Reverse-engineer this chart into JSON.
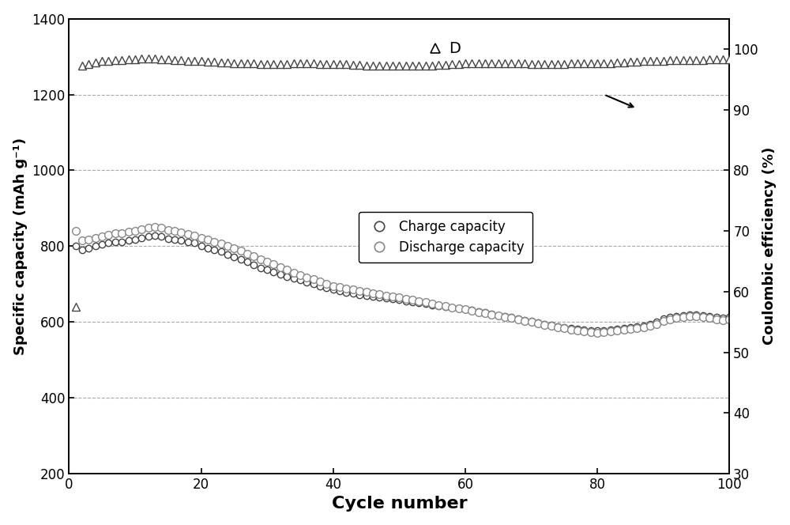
{
  "title": "",
  "xlabel": "Cycle number",
  "ylabel_left": "Specific capacity (mAh g⁻¹)",
  "ylabel_right": "Coulombic efficiency (%)",
  "xlim": [
    0,
    100
  ],
  "ylim_left": [
    200,
    1400
  ],
  "ylim_right": [
    30,
    105
  ],
  "yticks_left": [
    200,
    400,
    600,
    800,
    1000,
    1200,
    1400
  ],
  "yticks_right": [
    30,
    40,
    50,
    60,
    70,
    80,
    90,
    100
  ],
  "xticks": [
    0,
    20,
    40,
    60,
    80,
    100
  ],
  "legend_label_charge": "Charge capacity",
  "legend_label_discharge": "Discharge capacity",
  "annotation_label": "D",
  "background_color": "#ffffff",
  "grid_color": "#aaaaaa",
  "charge_cycles": [
    1,
    2,
    3,
    4,
    5,
    6,
    7,
    8,
    9,
    10,
    11,
    12,
    13,
    14,
    15,
    16,
    17,
    18,
    19,
    20,
    21,
    22,
    23,
    24,
    25,
    26,
    27,
    28,
    29,
    30,
    31,
    32,
    33,
    34,
    35,
    36,
    37,
    38,
    39,
    40,
    41,
    42,
    43,
    44,
    45,
    46,
    47,
    48,
    49,
    50,
    51,
    52,
    53,
    54,
    55,
    56,
    57,
    58,
    59,
    60,
    61,
    62,
    63,
    64,
    65,
    66,
    67,
    68,
    69,
    70,
    71,
    72,
    73,
    74,
    75,
    76,
    77,
    78,
    79,
    80,
    81,
    82,
    83,
    84,
    85,
    86,
    87,
    88,
    89,
    90,
    91,
    92,
    93,
    94,
    95,
    96,
    97,
    98,
    99,
    100
  ],
  "charge_capacity": [
    800,
    790,
    795,
    800,
    805,
    808,
    810,
    812,
    815,
    818,
    822,
    825,
    828,
    825,
    820,
    818,
    815,
    810,
    808,
    800,
    795,
    790,
    785,
    778,
    772,
    765,
    758,
    750,
    743,
    738,
    732,
    726,
    720,
    715,
    710,
    705,
    700,
    695,
    690,
    685,
    682,
    678,
    675,
    672,
    670,
    668,
    665,
    662,
    660,
    658,
    655,
    652,
    650,
    648,
    645,
    643,
    640,
    638,
    636,
    634,
    632,
    628,
    625,
    622,
    618,
    615,
    612,
    608,
    605,
    602,
    598,
    595,
    592,
    588,
    585,
    583,
    582,
    580,
    578,
    577,
    578,
    580,
    582,
    583,
    585,
    587,
    590,
    595,
    600,
    608,
    612,
    615,
    618,
    620,
    620,
    618,
    615,
    612,
    610,
    612
  ],
  "discharge_capacity": [
    840,
    815,
    818,
    822,
    825,
    830,
    833,
    835,
    838,
    840,
    845,
    848,
    850,
    848,
    842,
    840,
    836,
    832,
    828,
    822,
    817,
    812,
    807,
    800,
    795,
    788,
    780,
    773,
    765,
    758,
    752,
    745,
    737,
    730,
    724,
    718,
    712,
    706,
    700,
    695,
    692,
    688,
    685,
    682,
    679,
    676,
    673,
    670,
    667,
    664,
    661,
    658,
    655,
    652,
    648,
    645,
    642,
    638,
    636,
    633,
    630,
    626,
    623,
    620,
    616,
    613,
    610,
    606,
    603,
    600,
    596,
    593,
    590,
    586,
    583,
    580,
    578,
    576,
    574,
    572,
    573,
    575,
    577,
    579,
    581,
    583,
    585,
    590,
    595,
    603,
    607,
    610,
    613,
    615,
    615,
    613,
    610,
    607,
    605,
    607
  ],
  "ce_cycles": [
    1,
    2,
    3,
    4,
    5,
    6,
    7,
    8,
    9,
    10,
    11,
    12,
    13,
    14,
    15,
    16,
    17,
    18,
    19,
    20,
    21,
    22,
    23,
    24,
    25,
    26,
    27,
    28,
    29,
    30,
    31,
    32,
    33,
    34,
    35,
    36,
    37,
    38,
    39,
    40,
    41,
    42,
    43,
    44,
    45,
    46,
    47,
    48,
    49,
    50,
    51,
    52,
    53,
    54,
    55,
    56,
    57,
    58,
    59,
    60,
    61,
    62,
    63,
    64,
    65,
    66,
    67,
    68,
    69,
    70,
    71,
    72,
    73,
    74,
    75,
    76,
    77,
    78,
    79,
    80,
    81,
    82,
    83,
    84,
    85,
    86,
    87,
    88,
    89,
    90,
    91,
    92,
    93,
    94,
    95,
    96,
    97,
    98,
    99,
    100
  ],
  "coulombic_efficiency": [
    57.5,
    97.2,
    97.5,
    97.8,
    98.0,
    98.1,
    98.2,
    98.2,
    98.3,
    98.3,
    98.4,
    98.4,
    98.4,
    98.3,
    98.3,
    98.2,
    98.2,
    98.1,
    98.1,
    98.0,
    97.9,
    97.9,
    97.8,
    97.8,
    97.7,
    97.7,
    97.6,
    97.6,
    97.5,
    97.5,
    97.5,
    97.5,
    97.5,
    97.6,
    97.6,
    97.6,
    97.6,
    97.5,
    97.5,
    97.5,
    97.5,
    97.5,
    97.4,
    97.4,
    97.3,
    97.3,
    97.2,
    97.2,
    97.2,
    97.2,
    97.2,
    97.2,
    97.2,
    97.3,
    97.3,
    97.4,
    97.4,
    97.5,
    97.5,
    97.6,
    97.6,
    97.7,
    97.7,
    97.7,
    97.7,
    97.7,
    97.7,
    97.6,
    97.6,
    97.5,
    97.5,
    97.5,
    97.5,
    97.5,
    97.5,
    97.6,
    97.6,
    97.6,
    97.6,
    97.7,
    97.7,
    97.7,
    97.8,
    97.8,
    97.9,
    97.9,
    98.0,
    98.0,
    98.1,
    98.1,
    98.2,
    98.2,
    98.2,
    98.2,
    98.2,
    98.2,
    98.3,
    98.3,
    98.3,
    98.3
  ]
}
